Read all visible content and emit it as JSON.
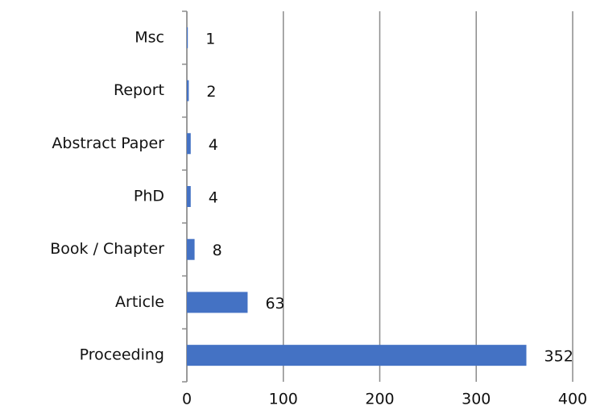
{
  "chart_data": {
    "type": "bar",
    "orientation": "horizontal",
    "categories": [
      "Msc",
      "Report",
      "Abstract Paper",
      "PhD",
      "Book / Chapter",
      "Article",
      "Proceeding"
    ],
    "values": [
      1,
      2,
      4,
      4,
      8,
      63,
      352
    ],
    "color": "#4472c4",
    "xlim": [
      0,
      400
    ],
    "xticks": [
      0,
      100,
      200,
      300,
      400
    ],
    "grid": true
  }
}
